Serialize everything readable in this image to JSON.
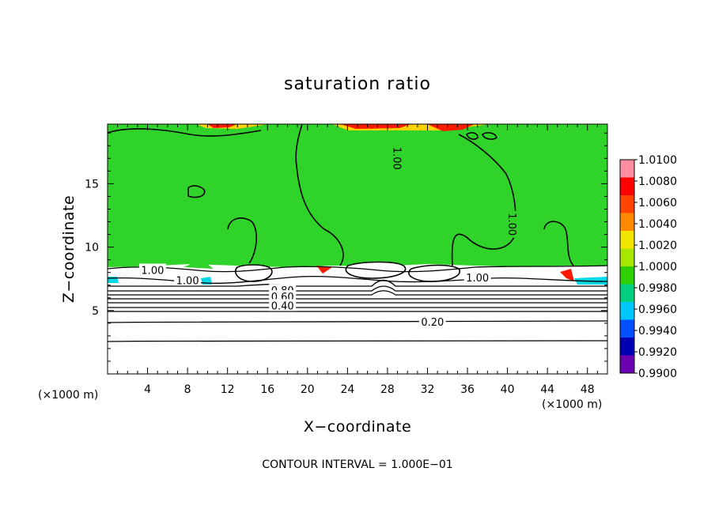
{
  "chart_data": {
    "type": "heatmap",
    "title": "saturation ratio",
    "xlabel": "X−coordinate",
    "ylabel": "Z−coordinate",
    "x_unit_label": "(×1000 m)",
    "y_unit_label": "(×1000 m)",
    "xlim": [
      0,
      50
    ],
    "ylim": [
      0,
      19.7
    ],
    "x_ticks": [
      4,
      8,
      12,
      16,
      20,
      24,
      28,
      32,
      36,
      40,
      44,
      48
    ],
    "y_ticks": [
      5,
      10,
      15
    ],
    "footer": "CONTOUR INTERVAL = 1.000E−01",
    "contour_labels": [
      {
        "text": "1.00",
        "x": 29.0,
        "y": 17.0
      },
      {
        "text": "1.00",
        "x": 40.5,
        "y": 11.8
      },
      {
        "text": "1.00",
        "x": 4.5,
        "y": 8.2
      },
      {
        "text": "1.00",
        "x": 8.0,
        "y": 7.4
      },
      {
        "text": "1.00",
        "x": 37.0,
        "y": 7.6
      },
      {
        "text": "0.80",
        "x": 17.5,
        "y": 6.6
      },
      {
        "text": "0.60",
        "x": 17.5,
        "y": 6.1
      },
      {
        "text": "0.40",
        "x": 17.5,
        "y": 5.4
      },
      {
        "text": "0.20",
        "x": 32.5,
        "y": 4.1
      }
    ],
    "colorbar": {
      "labels": [
        "1.0100",
        "1.0080",
        "1.0060",
        "1.0040",
        "1.0020",
        "1.0000",
        "0.9980",
        "0.9960",
        "0.9940",
        "0.9920",
        "0.9900"
      ],
      "colors": [
        "#ff8fa0",
        "#ff0000",
        "#ff4400",
        "#ff8a00",
        "#f2e600",
        "#a6e600",
        "#2ed000",
        "#00d080",
        "#00c8ff",
        "#0050ff",
        "#0000b0",
        "#6a00b0"
      ]
    },
    "field_colors": {
      "background": "#30d32a",
      "supersaturated": "#ff1a00",
      "slightly_high": "#ffd200",
      "subsaturated": "#00d8e8",
      "dry": "#ffffff",
      "contour": "#000000"
    }
  }
}
